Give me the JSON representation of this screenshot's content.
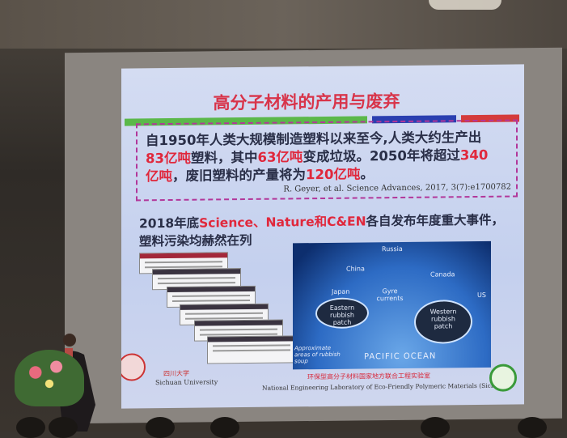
{
  "slide": {
    "title": "高分子材料的产用与废弃",
    "accent_colors": {
      "title": "#d8344a",
      "green_bar": "#5bb84a",
      "blue_bar": "#2a3fb0",
      "red_bar": "#d43b3b",
      "dashed_box": "#b2379a"
    },
    "quote_lines": [
      [
        {
          "t": "自1950年人类大规模制造塑料以来至今,人类大约生产出",
          "red": false
        }
      ],
      [
        {
          "t": "83亿吨",
          "red": true
        },
        {
          "t": "塑料，其中",
          "red": false
        },
        {
          "t": "63亿吨",
          "red": true
        },
        {
          "t": "变成垃圾。2050年将超过",
          "red": false
        },
        {
          "t": "340",
          "red": true
        }
      ],
      [
        {
          "t": "亿吨",
          "red": true
        },
        {
          "t": "，废旧塑料的产量将为",
          "red": false
        },
        {
          "t": "120亿吨",
          "red": true
        },
        {
          "t": "。",
          "red": false
        }
      ]
    ],
    "citation": "R. Geyer, et al. Science Advances, 2017, 3(7):e1700782",
    "heading2": [
      [
        {
          "t": "2018年底",
          "red": false
        },
        {
          "t": "Science、Nature和C&EN",
          "red": true
        },
        {
          "t": "各自发布年度重大事件，",
          "red": false
        }
      ],
      [
        {
          "t": "塑料污染均赫然在列",
          "red": false
        }
      ]
    ],
    "map_labels": {
      "russia": "Russia",
      "china": "China",
      "japan": "Japan",
      "canada": "Canada",
      "gyre": "Gyre currents",
      "eastern": "Eastern rubbish patch",
      "western": "Western rubbish patch",
      "us": "US",
      "pacific": "PACIFIC OCEAN",
      "soup": "Approximate areas of rubbish soup"
    },
    "footer": {
      "university_cn": "四川大学",
      "university_en": "Sichuan University",
      "lab_cn": "环保型高分子材料国家地方联合工程实验室",
      "lab_en": "National Engineering Laboratory of Eco-Friendly Polymeric Materials (Sichuan)"
    }
  }
}
